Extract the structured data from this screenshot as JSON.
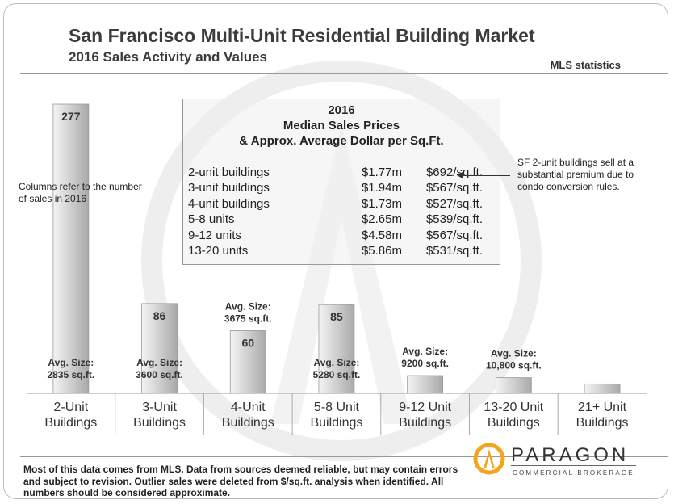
{
  "title": "San Francisco Multi-Unit Residential Building Market",
  "subtitle": "2016 Sales Activity and Values",
  "source_label": "MLS statistics",
  "note_left": "Columns refer to the number of sales in 2016",
  "note_right": "SF 2-unit buildings sell at a substantial premium due to condo conversion rules.",
  "price_box": {
    "heading": [
      "2016",
      "Median Sales Prices",
      "& Approx. Average Dollar per Sq.Ft."
    ],
    "rows": [
      {
        "type": "2-unit buildings",
        "median": "$1.77m",
        "psf": "$692/sq.ft."
      },
      {
        "type": "3-unit buildings",
        "median": "$1.94m",
        "psf": "$567/sq.ft."
      },
      {
        "type": "4-unit buildings",
        "median": "$1.73m",
        "psf": "$527/sq.ft."
      },
      {
        "type": "5-8 units",
        "median": "$2.65m",
        "psf": "$539/sq.ft."
      },
      {
        "type": "9-12 units",
        "median": "$4.58m",
        "psf": "$567/sq.ft."
      },
      {
        "type": "13-20 units",
        "median": "$5.86m",
        "psf": "$531/sq.ft."
      }
    ]
  },
  "chart_data": {
    "type": "bar",
    "title": "San Francisco Multi-Unit Residential Building Market",
    "subtitle": "2016 Sales Activity and Values",
    "categories": [
      "2-Unit Buildings",
      "3-Unit Buildings",
      "4-Unit Buildings",
      "5-8 Unit Buildings",
      "9-12 Unit Buildings",
      "13-20 Unit Buildings",
      "21+ Unit Buildings"
    ],
    "category_lines": [
      [
        "2-Unit",
        "Buildings"
      ],
      [
        "3-Unit",
        "Buildings"
      ],
      [
        "4-Unit",
        "Buildings"
      ],
      [
        "5-8 Unit",
        "Buildings"
      ],
      [
        "9-12 Unit",
        "Buildings"
      ],
      [
        "13-20 Unit",
        "Buildings"
      ],
      [
        "21+ Unit",
        "Buildings"
      ]
    ],
    "values": [
      277,
      86,
      60,
      85,
      17,
      15,
      9
    ],
    "value_labels": [
      "277",
      "86",
      "60",
      "85",
      "",
      "",
      ""
    ],
    "avg_size_labels": [
      [
        "Avg. Size:",
        "2835 sq.ft."
      ],
      [
        "Avg. Size:",
        "3600 sq.ft."
      ],
      [
        "Avg. Size:",
        "3675 sq.ft."
      ],
      [
        "Avg. Size:",
        "5280 sq.ft."
      ],
      [
        "Avg. Size:",
        "9200 sq.ft."
      ],
      [
        "Avg. Size:",
        "10,800 sq.ft."
      ],
      []
    ],
    "ylim": [
      0,
      277
    ],
    "xlabel": "",
    "ylabel": "",
    "grid": false,
    "bar_color": "#d9d9d9"
  },
  "footer": "Most of this data comes from MLS. Data from sources deemed reliable, but may contain errors and subject to revision. Outlier  sales were deleted from $/sq.ft. analysis when identified. All numbers should be considered  approximate.",
  "logo": {
    "name": "PARAGON",
    "tagline": "COMMERCIAL BROKERAGE",
    "accent_color": "#f3a51f"
  }
}
